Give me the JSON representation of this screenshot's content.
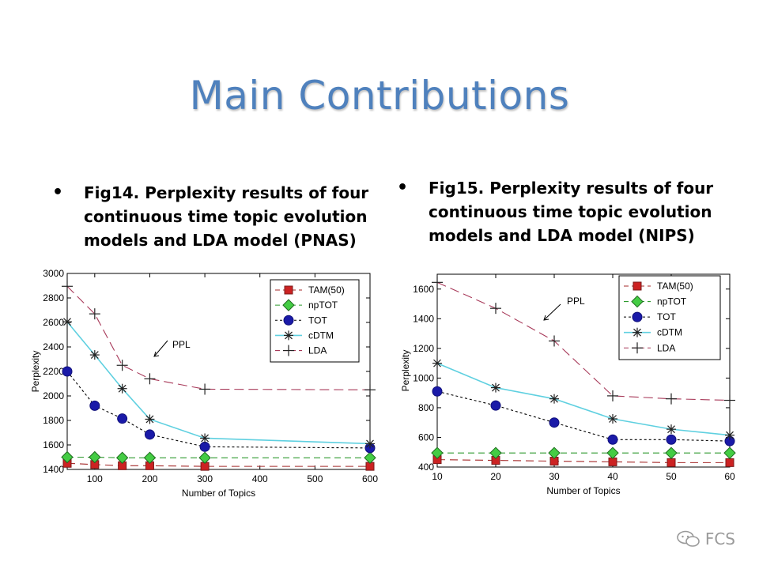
{
  "slide": {
    "title": "Main Contributions",
    "bullet_left": [
      "Fig14. Perplexity results of four",
      "continuous time topic evolution",
      "models and LDA model (PNAS)"
    ],
    "bullet_right": [
      "Fig15. Perplexity results of four",
      "continuous time topic evolution",
      "models and LDA model (NIPS)"
    ],
    "bullet_symbol": "•",
    "footer": "FCS",
    "footer_icon": "wechat-icon"
  },
  "chart_data": [
    {
      "type": "line",
      "xlabel": "Number of Topics",
      "ylabel": "Perplexity",
      "xlim": [
        50,
        600
      ],
      "ylim": [
        1400,
        3000
      ],
      "xticks": [
        100,
        200,
        300,
        400,
        500,
        600
      ],
      "yticks": [
        1400,
        1600,
        1800,
        2000,
        2200,
        2400,
        2600,
        2800,
        3000
      ],
      "legend_position": "top-right",
      "annotation": "PPL",
      "series": [
        {
          "name": "TAM(50)",
          "color": "#a52a2a",
          "fill": "#cc2222",
          "dash": "10,6",
          "marker": "square",
          "x": [
            50,
            100,
            150,
            200,
            300,
            600
          ],
          "y": [
            1450,
            1440,
            1430,
            1430,
            1425,
            1425
          ]
        },
        {
          "name": "npTOT",
          "color": "#2e9a2e",
          "fill": "#44cc44",
          "dash": "8,5",
          "marker": "diamond",
          "x": [
            50,
            100,
            150,
            200,
            300,
            600
          ],
          "y": [
            1500,
            1500,
            1495,
            1495,
            1495,
            1495
          ]
        },
        {
          "name": "TOT",
          "color": "#000000",
          "fill": "#1a1aa8",
          "dash": "3,3",
          "marker": "circle",
          "x": [
            50,
            100,
            150,
            200,
            300,
            600
          ],
          "y": [
            2200,
            1920,
            1815,
            1685,
            1585,
            1575
          ]
        },
        {
          "name": "cDTM",
          "color": "#5fd0e0",
          "fill": "none",
          "dash": "",
          "marker": "star",
          "x": [
            50,
            100,
            150,
            200,
            300,
            600
          ],
          "y": [
            2605,
            2335,
            2060,
            1810,
            1655,
            1610
          ]
        },
        {
          "name": "LDA",
          "color": "#a83a5a",
          "fill": "none",
          "dash": "12,6",
          "marker": "plus",
          "x": [
            50,
            100,
            150,
            200,
            300,
            600
          ],
          "y": [
            2895,
            2670,
            2250,
            2140,
            2055,
            2050
          ]
        }
      ]
    },
    {
      "type": "line",
      "xlabel": "Number of Topics",
      "ylabel": "Perplexity",
      "xlim": [
        10,
        60
      ],
      "ylim": [
        400,
        1700
      ],
      "xticks": [
        10,
        20,
        30,
        40,
        50,
        60
      ],
      "yticks": [
        400,
        600,
        800,
        1000,
        1200,
        1400,
        1600
      ],
      "legend_position": "top-right",
      "annotation": "PPL",
      "series": [
        {
          "name": "TAM(50)",
          "color": "#a52a2a",
          "fill": "#cc2222",
          "dash": "10,6",
          "marker": "square",
          "x": [
            10,
            20,
            30,
            40,
            50,
            60
          ],
          "y": [
            450,
            445,
            440,
            435,
            430,
            430
          ]
        },
        {
          "name": "npTOT",
          "color": "#2e9a2e",
          "fill": "#44cc44",
          "dash": "8,5",
          "marker": "diamond",
          "x": [
            10,
            20,
            30,
            40,
            50,
            60
          ],
          "y": [
            495,
            495,
            495,
            495,
            495,
            495
          ]
        },
        {
          "name": "TOT",
          "color": "#000000",
          "fill": "#1a1aa8",
          "dash": "3,3",
          "marker": "circle",
          "x": [
            10,
            20,
            30,
            40,
            50,
            60
          ],
          "y": [
            910,
            815,
            700,
            585,
            585,
            575
          ]
        },
        {
          "name": "cDTM",
          "color": "#5fd0e0",
          "fill": "none",
          "dash": "",
          "marker": "star",
          "x": [
            10,
            20,
            30,
            40,
            50,
            60
          ],
          "y": [
            1100,
            935,
            860,
            725,
            655,
            615
          ]
        },
        {
          "name": "LDA",
          "color": "#a83a5a",
          "fill": "none",
          "dash": "12,6",
          "marker": "plus",
          "x": [
            10,
            20,
            30,
            40,
            50,
            60
          ],
          "y": [
            1645,
            1470,
            1250,
            880,
            860,
            850
          ]
        }
      ]
    }
  ]
}
